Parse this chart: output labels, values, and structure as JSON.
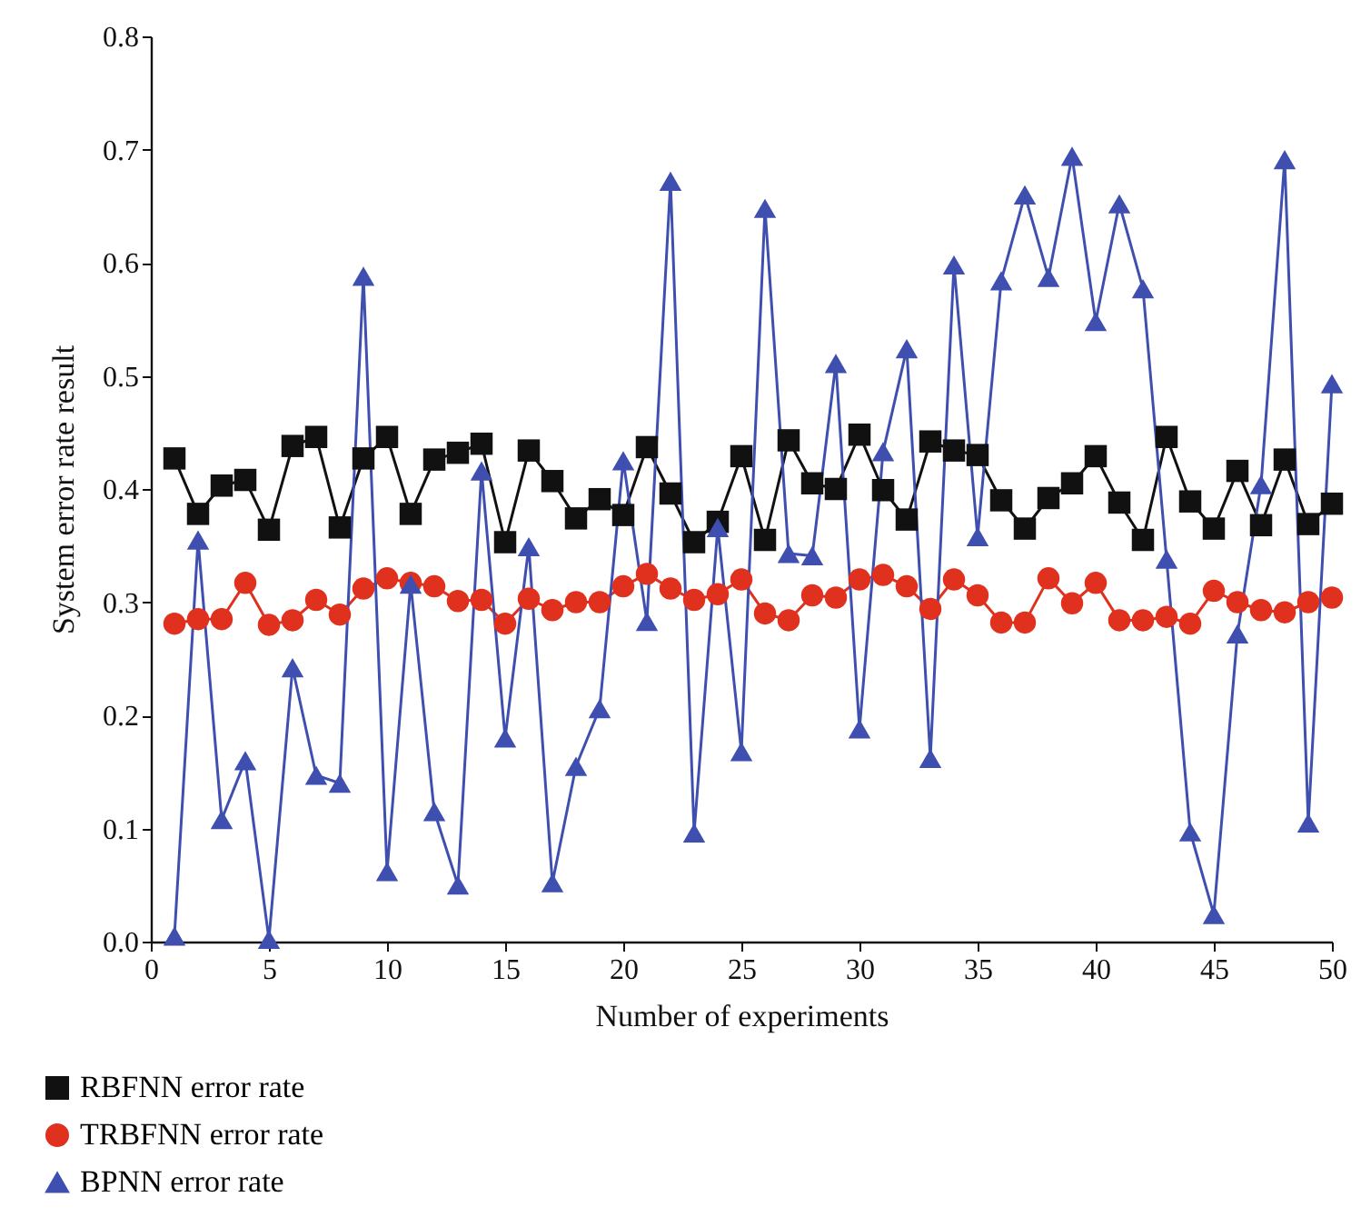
{
  "chart_data": {
    "type": "line",
    "xlabel": "Number of experiments",
    "ylabel": "System error rate result",
    "x": [
      1,
      2,
      3,
      4,
      5,
      6,
      7,
      8,
      9,
      10,
      11,
      12,
      13,
      14,
      15,
      16,
      17,
      18,
      19,
      20,
      21,
      22,
      23,
      24,
      25,
      26,
      27,
      28,
      29,
      30,
      31,
      32,
      33,
      34,
      35,
      36,
      37,
      38,
      39,
      40,
      41,
      42,
      43,
      44,
      45,
      46,
      47,
      48,
      49,
      50
    ],
    "series": [
      {
        "name": "RBFNN error rate",
        "color": "#111111",
        "marker": "square",
        "values": [
          0.427,
          0.378,
          0.403,
          0.408,
          0.364,
          0.438,
          0.446,
          0.366,
          0.427,
          0.446,
          0.378,
          0.426,
          0.432,
          0.44,
          0.353,
          0.434,
          0.407,
          0.374,
          0.391,
          0.377,
          0.437,
          0.396,
          0.353,
          0.371,
          0.429,
          0.355,
          0.443,
          0.405,
          0.4,
          0.448,
          0.399,
          0.373,
          0.442,
          0.434,
          0.43,
          0.39,
          0.365,
          0.392,
          0.405,
          0.429,
          0.388,
          0.355,
          0.446,
          0.389,
          0.365,
          0.416,
          0.368,
          0.426,
          0.369,
          0.387
        ]
      },
      {
        "name": "TRBFNN error rate",
        "color": "#e0301e",
        "marker": "circle",
        "values": [
          0.281,
          0.285,
          0.285,
          0.317,
          0.28,
          0.284,
          0.302,
          0.289,
          0.312,
          0.321,
          0.317,
          0.314,
          0.301,
          0.302,
          0.281,
          0.303,
          0.293,
          0.3,
          0.3,
          0.314,
          0.325,
          0.312,
          0.302,
          0.307,
          0.32,
          0.29,
          0.284,
          0.306,
          0.304,
          0.32,
          0.324,
          0.314,
          0.294,
          0.32,
          0.306,
          0.282,
          0.282,
          0.321,
          0.299,
          0.317,
          0.284,
          0.284,
          0.287,
          0.281,
          0.31,
          0.3,
          0.293,
          0.291,
          0.3,
          0.304
        ]
      },
      {
        "name": "BPNN error rate",
        "color": "#3f4fb0",
        "marker": "triangle",
        "values": [
          0.005,
          0.355,
          0.108,
          0.16,
          0.002,
          0.242,
          0.147,
          0.14,
          0.588,
          0.062,
          0.316,
          0.115,
          0.05,
          0.416,
          0.18,
          0.349,
          0.052,
          0.155,
          0.206,
          0.425,
          0.283,
          0.672,
          0.096,
          0.366,
          0.168,
          0.648,
          0.343,
          0.341,
          0.511,
          0.188,
          0.433,
          0.524,
          0.162,
          0.598,
          0.358,
          0.584,
          0.66,
          0.587,
          0.694,
          0.548,
          0.652,
          0.577,
          0.338,
          0.097,
          0.024,
          0.272,
          0.404,
          0.691,
          0.105,
          0.493
        ]
      }
    ],
    "xlim": [
      0,
      50
    ],
    "xticks": [
      0,
      5,
      10,
      15,
      20,
      25,
      30,
      35,
      40,
      45,
      50
    ],
    "ylim": [
      0,
      0.8
    ],
    "yticks": [
      {
        "value": 0,
        "label": "0.0"
      },
      {
        "value": 0.1,
        "label": "0.1"
      },
      {
        "value": 0.2,
        "label": "0.2"
      },
      {
        "value": 0.3,
        "label": "0.3"
      },
      {
        "value": 0.4,
        "label": "0.4"
      },
      {
        "value": 0.5,
        "label": "0.5"
      },
      {
        "value": 0.6,
        "label": "0.6"
      },
      {
        "value": 0.7,
        "label": "0.7"
      },
      {
        "value": 0.8,
        "label": "0.8"
      }
    ],
    "grid": false,
    "legend": "bottom left",
    "line_style": "solid"
  }
}
